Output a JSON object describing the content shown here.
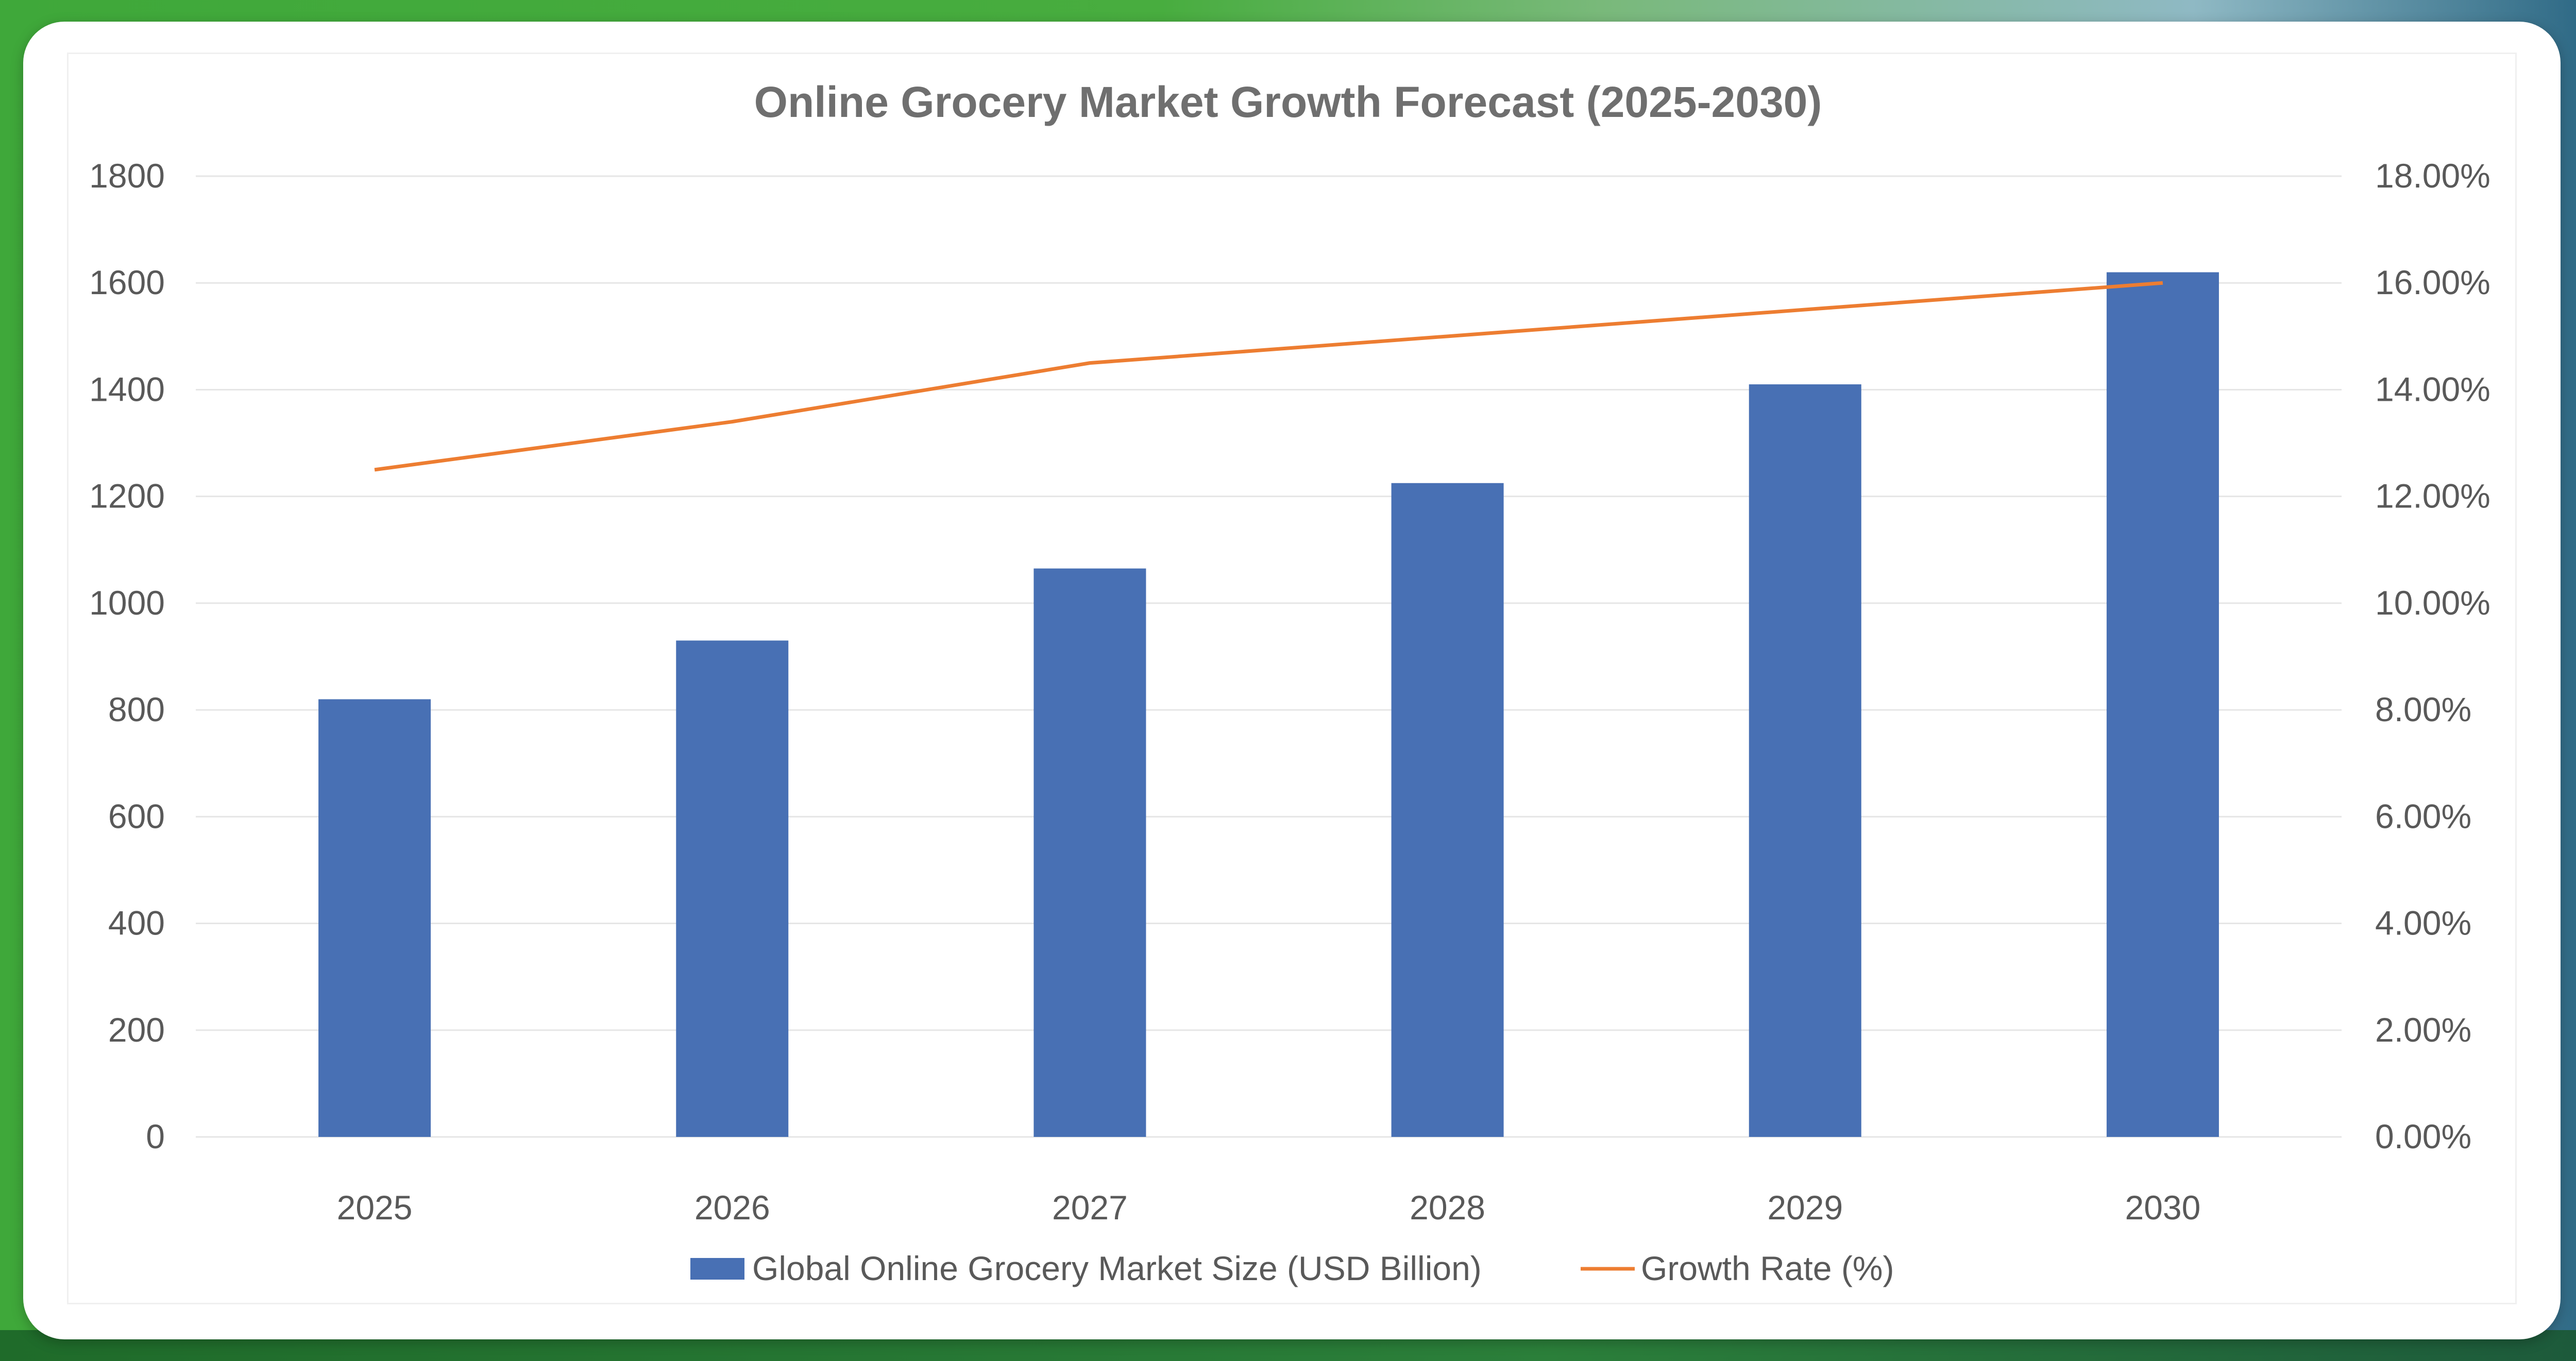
{
  "chart_data": {
    "type": "bar",
    "title": "Online Grocery Market Growth Forecast (2025-2030)",
    "categories": [
      "2025",
      "2026",
      "2027",
      "2028",
      "2029",
      "2030"
    ],
    "series": [
      {
        "name": "Global Online Grocery Market Size (USD Billion)",
        "type": "bar",
        "axis": "left",
        "color": "#4870b4",
        "values": [
          820,
          930,
          1065,
          1225,
          1410,
          1620
        ]
      },
      {
        "name": "Growth Rate (%)",
        "type": "line",
        "axis": "right",
        "color": "#ed7d31",
        "values": [
          12.5,
          13.4,
          14.5,
          15.0,
          15.5,
          16.0
        ]
      }
    ],
    "y_left": {
      "ylim": [
        0,
        1800
      ],
      "ticks": [
        0,
        200,
        400,
        600,
        800,
        1000,
        1200,
        1400,
        1600,
        1800
      ],
      "tick_labels": [
        "0",
        "200",
        "400",
        "600",
        "800",
        "1000",
        "1200",
        "1400",
        "1600",
        "1800"
      ]
    },
    "y_right": {
      "ylim": [
        0,
        18
      ],
      "ticks": [
        0,
        2,
        4,
        6,
        8,
        10,
        12,
        14,
        16,
        18
      ],
      "tick_labels": [
        "0.00%",
        "2.00%",
        "4.00%",
        "6.00%",
        "8.00%",
        "10.00%",
        "12.00%",
        "14.00%",
        "16.00%",
        "18.00%"
      ]
    },
    "grid": true,
    "legend_position": "bottom"
  }
}
